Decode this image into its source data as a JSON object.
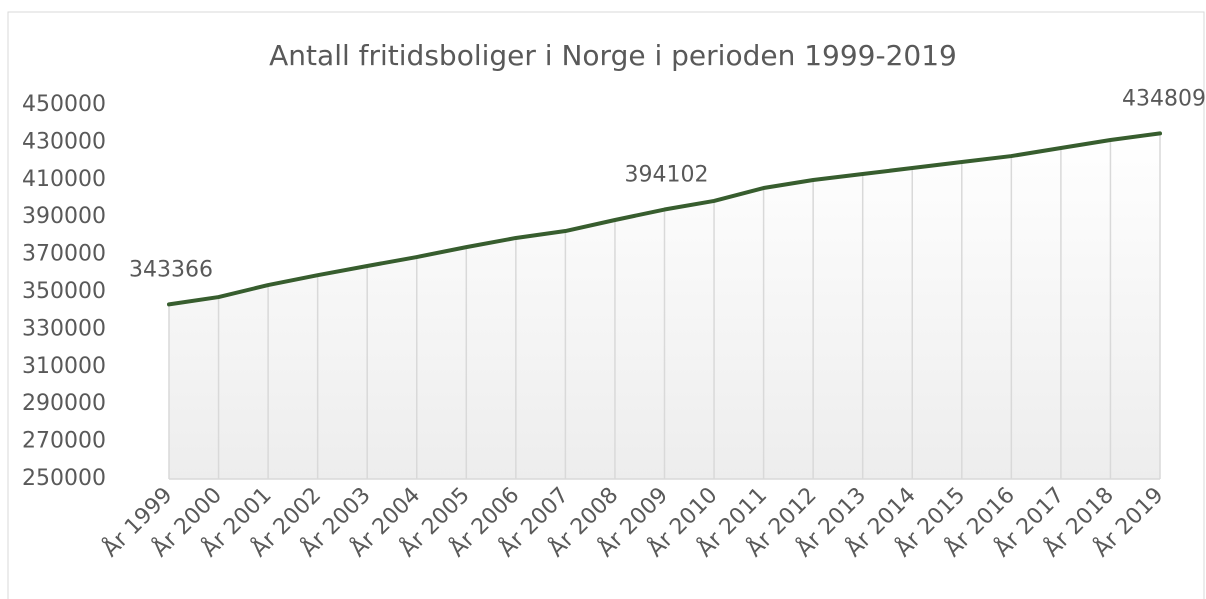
{
  "chart_data": {
    "type": "line",
    "title": "Antall fritidsboliger i Norge i perioden 1999-2019",
    "categories": [
      "År 1999",
      "År 2000",
      "År 2001",
      "År 2002",
      "År 2003",
      "År 2004",
      "År 2005",
      "År 2006",
      "År 2007",
      "År 2008",
      "År 2009",
      "År 2010",
      "År 2011",
      "År 2012",
      "År 2013",
      "År 2014",
      "År 2015",
      "År 2016",
      "År 2017",
      "År 2018",
      "År 2019"
    ],
    "values": [
      343366,
      347300,
      353700,
      359000,
      363900,
      368700,
      374000,
      378900,
      382600,
      388500,
      394102,
      398700,
      405600,
      409900,
      413100,
      416300,
      419500,
      422700,
      427000,
      431300,
      434809
    ],
    "value_labels": [
      "343366",
      null,
      null,
      null,
      null,
      null,
      null,
      null,
      null,
      null,
      "394102",
      null,
      null,
      null,
      null,
      null,
      null,
      null,
      null,
      null,
      "434809"
    ],
    "color": "#375d2e",
    "ylim": [
      250000,
      450000
    ],
    "yticks": [
      250000,
      270000,
      290000,
      310000,
      330000,
      350000,
      370000,
      390000,
      410000,
      430000,
      450000
    ],
    "drop_lines": true
  }
}
